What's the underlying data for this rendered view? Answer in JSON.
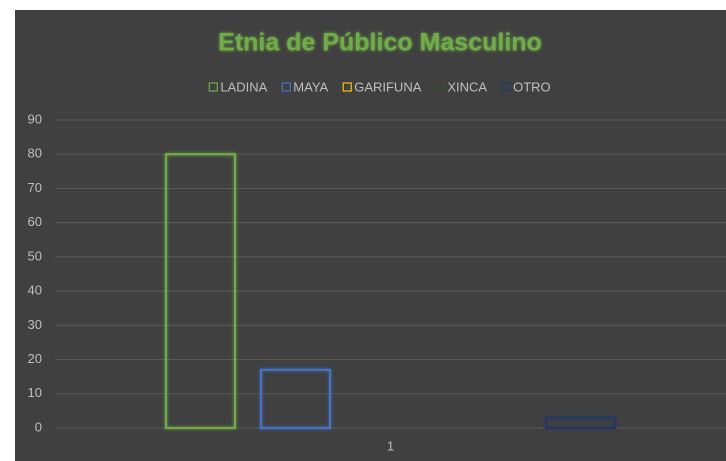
{
  "chart_data": {
    "type": "bar",
    "title": "Etnia de Público Masculino",
    "categories": [
      "1"
    ],
    "series": [
      {
        "name": "LADINA",
        "color": "#70ad47",
        "values": [
          80
        ]
      },
      {
        "name": "MAYA",
        "color": "#4472c4",
        "values": [
          17
        ]
      },
      {
        "name": "GARIFUNA",
        "color": "#ffc000",
        "values": [
          0
        ]
      },
      {
        "name": "XINCA",
        "color": "#375623",
        "values": [
          0
        ]
      },
      {
        "name": "OTRO",
        "color": "#203864",
        "values": [
          3
        ]
      }
    ],
    "ylim": [
      0,
      90
    ],
    "yticks": [
      0,
      10,
      20,
      30,
      40,
      50,
      60,
      70,
      80,
      90
    ],
    "grid": true,
    "legend": "top"
  }
}
